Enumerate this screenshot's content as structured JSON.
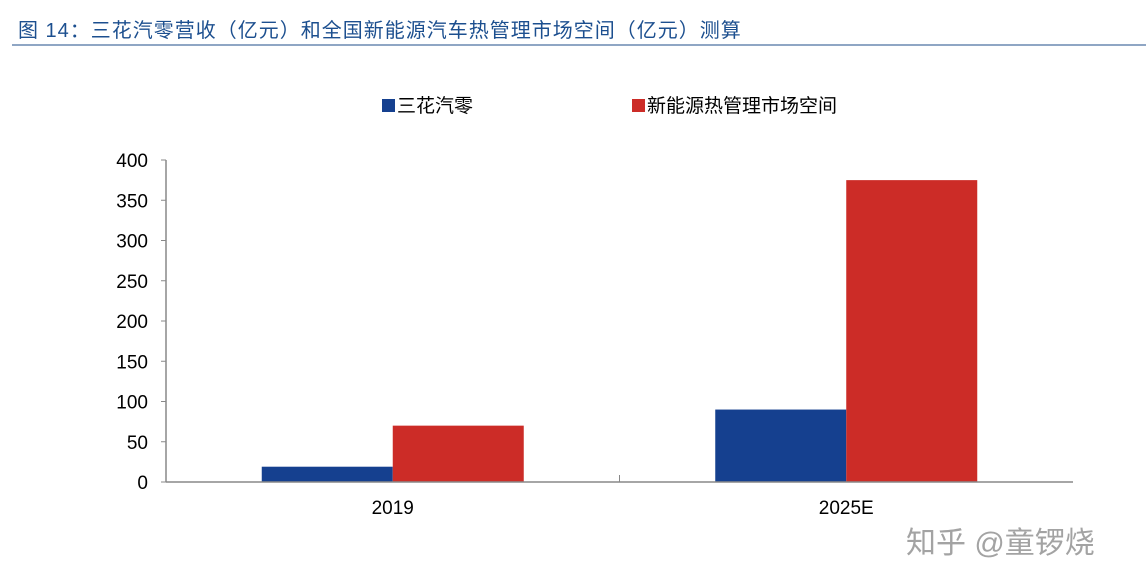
{
  "chart_data": {
    "type": "bar",
    "title": "图 14：三花汽零营收（亿元）和全国新能源汽车热管理市场空间（亿元）测算",
    "categories": [
      "2019",
      "2025E"
    ],
    "series": [
      {
        "name": "三花汽零",
        "values": [
          19,
          90
        ],
        "color": "#15408f"
      },
      {
        "name": "新能源热管理市场空间",
        "values": [
          70,
          375
        ],
        "color": "#cc2c27"
      }
    ],
    "ylim": [
      0,
      400
    ],
    "yticks": [
      0,
      50,
      100,
      150,
      200,
      250,
      300,
      350,
      400
    ],
    "xlabel": "",
    "ylabel": "",
    "grid": false,
    "legend": "top"
  },
  "watermark": "知乎 @童锣烧"
}
